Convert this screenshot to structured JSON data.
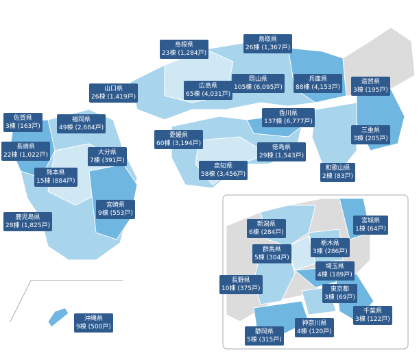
{
  "labels": [
    {
      "name": "島根県",
      "count": "23棟 (1,284戸)"
    },
    {
      "name": "鳥取県",
      "count": "26棟 (1,367戸)"
    },
    {
      "name": "広島県",
      "count": "65棟 (4,031戸)"
    },
    {
      "name": "岡山県",
      "count": "105棟 (6,095戸)"
    },
    {
      "name": "兵庫県",
      "count": "88棟 (4,153戸)"
    },
    {
      "name": "滋賀県",
      "count": "3棟 (195戸)"
    },
    {
      "name": "山口県",
      "count": "26棟 (1,419戸)"
    },
    {
      "name": "香川県",
      "count": "137棟 (6,777戸)"
    },
    {
      "name": "三重県",
      "count": "3棟 (205戸)"
    },
    {
      "name": "佐賀県",
      "count": "3棟 (163戸)"
    },
    {
      "name": "福岡県",
      "count": "49棟 (2,684戸)"
    },
    {
      "name": "愛媛県",
      "count": "60棟 (3,194戸)"
    },
    {
      "name": "長崎県",
      "count": "22棟 (1,022戸)"
    },
    {
      "name": "大分県",
      "count": "7棟 (391戸)"
    },
    {
      "name": "徳島県",
      "count": "29棟 (1,543戸)"
    },
    {
      "name": "高知県",
      "count": "58棟 (3,456戸)"
    },
    {
      "name": "和歌山県",
      "count": "2棟 (83戸)"
    },
    {
      "name": "熊本県",
      "count": "15棟 (884戸)"
    },
    {
      "name": "宮崎県",
      "count": "9棟 (553戸)"
    },
    {
      "name": "鹿児島県",
      "count": "28棟 (1,825戸)"
    },
    {
      "name": "新潟県",
      "count": "6棟 (284戸)"
    },
    {
      "name": "宮城県",
      "count": "1棟 (64戸)"
    },
    {
      "name": "栃木県",
      "count": "3棟 (286戸)"
    },
    {
      "name": "群馬県",
      "count": "5棟 (304戸)"
    },
    {
      "name": "埼玉県",
      "count": "4棟 (189戸)"
    },
    {
      "name": "長野県",
      "count": "10棟 (375戸)"
    },
    {
      "name": "東京都",
      "count": "3棟 (69戸)"
    },
    {
      "name": "千葉県",
      "count": "3棟 (122戸)"
    },
    {
      "name": "神奈川県",
      "count": "4棟 (120戸)"
    },
    {
      "name": "静岡県",
      "count": "5棟 (315戸)"
    },
    {
      "name": "沖縄県",
      "count": "9棟 (500戸)"
    }
  ]
}
